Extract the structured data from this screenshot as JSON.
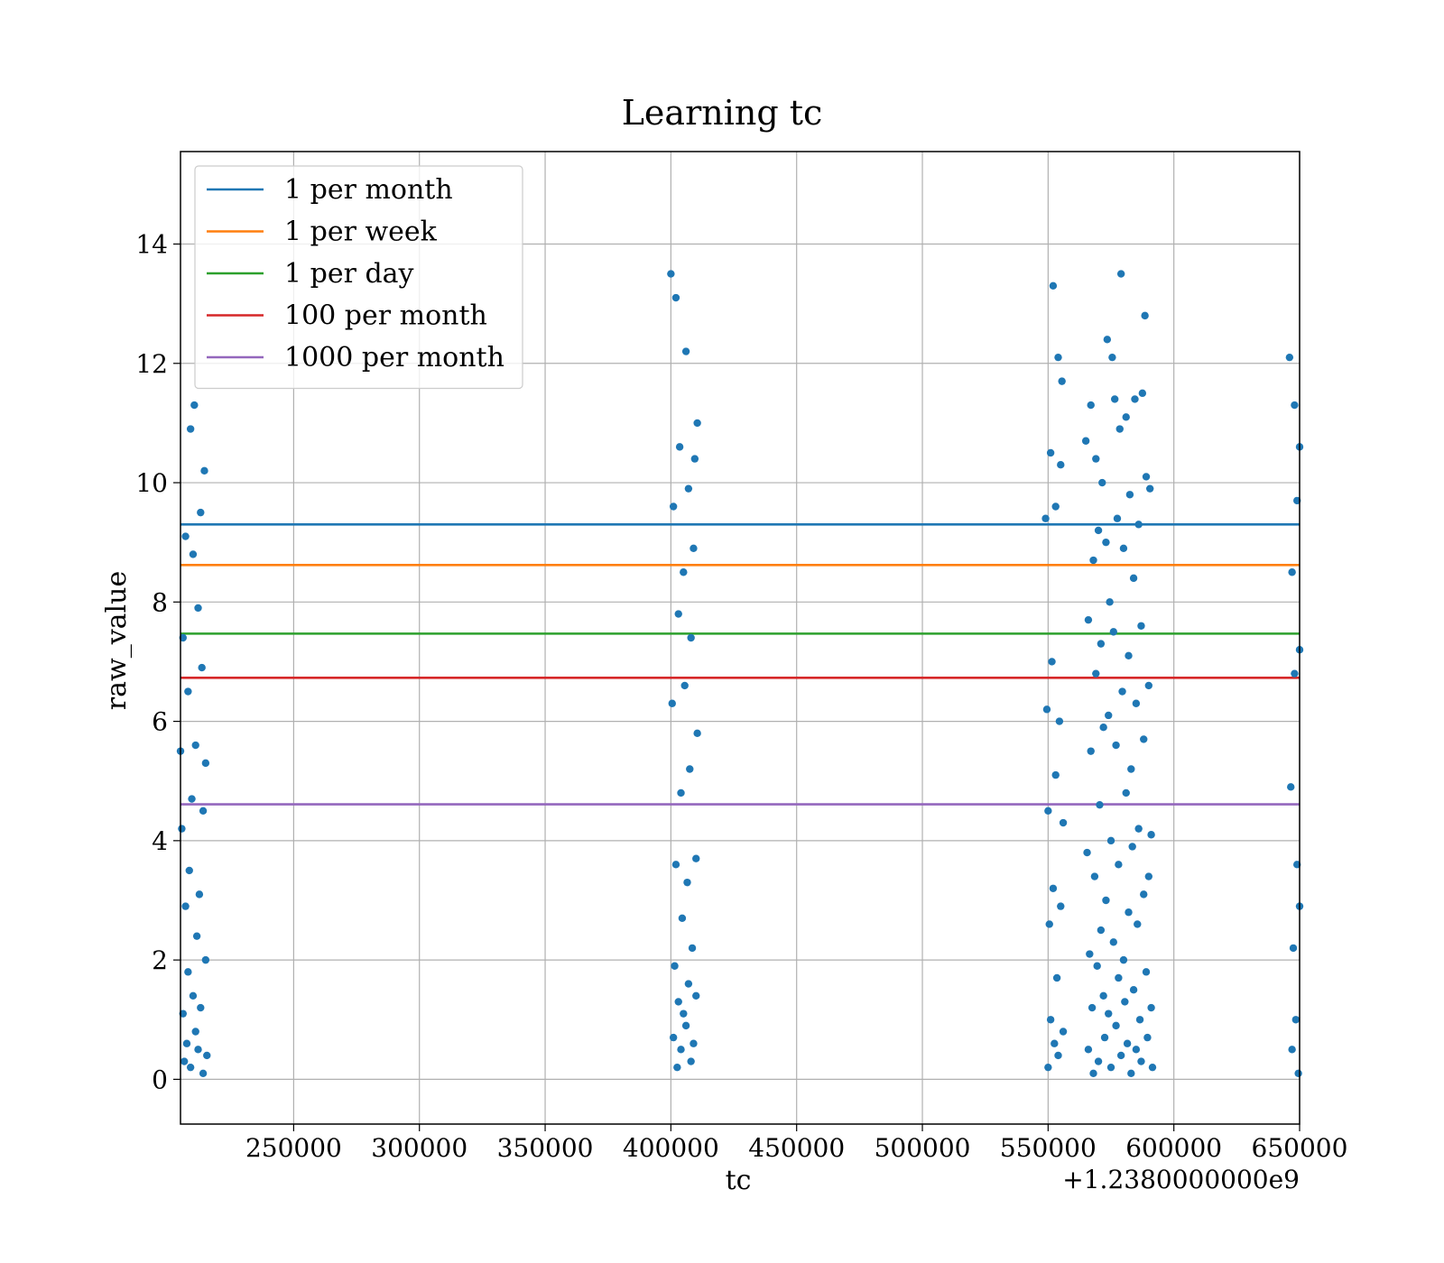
{
  "chart_data": {
    "type": "scatter",
    "title": "Learning tc",
    "xlabel": "tc",
    "ylabel": "raw_value",
    "x_offset_label": "+1.2380000000e9",
    "xlim": [
      1238205000,
      1238650000
    ],
    "ylim": [
      -0.75,
      15.55
    ],
    "x_ticks": [
      1238250000,
      1238300000,
      1238350000,
      1238400000,
      1238450000,
      1238500000,
      1238550000,
      1238600000,
      1238650000
    ],
    "x_tick_labels": [
      "250000",
      "300000",
      "350000",
      "400000",
      "450000",
      "500000",
      "550000",
      "600000",
      "650000"
    ],
    "y_ticks": [
      0,
      2,
      4,
      6,
      8,
      10,
      12,
      14
    ],
    "y_tick_labels": [
      "0",
      "2",
      "4",
      "6",
      "8",
      "10",
      "12",
      "14"
    ],
    "grid": true,
    "legend_position": "top-left",
    "colors": {
      "scatter": "#1f77b4",
      "grid": "#b0b0b0"
    },
    "series": [
      {
        "name": "raw_value",
        "type": "scatter",
        "points": [
          [
            1238205000,
            5.5
          ],
          [
            1238205500,
            4.2
          ],
          [
            1238206000,
            1.1
          ],
          [
            1238206000,
            7.4
          ],
          [
            1238206500,
            0.3
          ],
          [
            1238207000,
            9.1
          ],
          [
            1238207000,
            2.9
          ],
          [
            1238207500,
            0.6
          ],
          [
            1238208000,
            6.5
          ],
          [
            1238208000,
            1.8
          ],
          [
            1238208500,
            3.5
          ],
          [
            1238209000,
            10.9
          ],
          [
            1238209000,
            0.2
          ],
          [
            1238209500,
            4.7
          ],
          [
            1238210000,
            8.8
          ],
          [
            1238210000,
            1.4
          ],
          [
            1238210500,
            11.3
          ],
          [
            1238211000,
            5.6
          ],
          [
            1238211000,
            0.8
          ],
          [
            1238211500,
            2.4
          ],
          [
            1238212000,
            7.9
          ],
          [
            1238212000,
            0.5
          ],
          [
            1238212500,
            3.1
          ],
          [
            1238213000,
            9.5
          ],
          [
            1238213000,
            1.2
          ],
          [
            1238213500,
            6.9
          ],
          [
            1238214000,
            4.5
          ],
          [
            1238214000,
            0.1
          ],
          [
            1238214500,
            10.2
          ],
          [
            1238215000,
            2.0
          ],
          [
            1238215000,
            5.3
          ],
          [
            1238215500,
            0.4
          ],
          [
            1238400000,
            13.5
          ],
          [
            1238400500,
            6.3
          ],
          [
            1238401000,
            0.7
          ],
          [
            1238401000,
            9.6
          ],
          [
            1238401500,
            1.9
          ],
          [
            1238402000,
            13.1
          ],
          [
            1238402000,
            3.6
          ],
          [
            1238402500,
            0.2
          ],
          [
            1238403000,
            7.8
          ],
          [
            1238403000,
            1.3
          ],
          [
            1238403500,
            10.6
          ],
          [
            1238404000,
            4.8
          ],
          [
            1238404000,
            0.5
          ],
          [
            1238404500,
            2.7
          ],
          [
            1238405000,
            8.5
          ],
          [
            1238405000,
            1.1
          ],
          [
            1238405500,
            6.6
          ],
          [
            1238406000,
            12.2
          ],
          [
            1238406000,
            0.9
          ],
          [
            1238406500,
            3.3
          ],
          [
            1238407000,
            9.9
          ],
          [
            1238407000,
            1.6
          ],
          [
            1238407500,
            5.2
          ],
          [
            1238408000,
            0.3
          ],
          [
            1238408000,
            7.4
          ],
          [
            1238408500,
            2.2
          ],
          [
            1238409000,
            8.9
          ],
          [
            1238409000,
            0.6
          ],
          [
            1238409500,
            10.4
          ],
          [
            1238410000,
            3.7
          ],
          [
            1238410000,
            1.4
          ],
          [
            1238410500,
            11.0
          ],
          [
            1238410500,
            5.8
          ],
          [
            1238549000,
            9.4
          ],
          [
            1238549500,
            6.2
          ],
          [
            1238550000,
            0.2
          ],
          [
            1238550000,
            4.5
          ],
          [
            1238550500,
            2.6
          ],
          [
            1238551000,
            10.5
          ],
          [
            1238551000,
            1.0
          ],
          [
            1238551500,
            7.0
          ],
          [
            1238552000,
            13.3
          ],
          [
            1238552000,
            3.2
          ],
          [
            1238552500,
            0.6
          ],
          [
            1238553000,
            9.6
          ],
          [
            1238553000,
            5.1
          ],
          [
            1238553500,
            1.7
          ],
          [
            1238554000,
            12.1
          ],
          [
            1238554000,
            0.4
          ],
          [
            1238554500,
            6.0
          ],
          [
            1238555000,
            10.3
          ],
          [
            1238555000,
            2.9
          ],
          [
            1238555500,
            11.7
          ],
          [
            1238556000,
            0.8
          ],
          [
            1238556000,
            4.3
          ],
          [
            1238565000,
            10.7
          ],
          [
            1238565500,
            3.8
          ],
          [
            1238566000,
            0.5
          ],
          [
            1238566000,
            7.7
          ],
          [
            1238566500,
            2.1
          ],
          [
            1238567000,
            11.3
          ],
          [
            1238567000,
            5.5
          ],
          [
            1238567500,
            1.2
          ],
          [
            1238568000,
            8.7
          ],
          [
            1238568000,
            0.1
          ],
          [
            1238568500,
            3.4
          ],
          [
            1238569000,
            10.4
          ],
          [
            1238569000,
            6.8
          ],
          [
            1238569500,
            1.9
          ],
          [
            1238570000,
            9.2
          ],
          [
            1238570000,
            0.3
          ],
          [
            1238570500,
            4.6
          ],
          [
            1238571000,
            7.3
          ],
          [
            1238571000,
            2.5
          ],
          [
            1238571500,
            10.0
          ],
          [
            1238572000,
            1.4
          ],
          [
            1238572000,
            5.9
          ],
          [
            1238572500,
            0.7
          ],
          [
            1238573000,
            9.0
          ],
          [
            1238573000,
            3.0
          ],
          [
            1238573500,
            12.4
          ],
          [
            1238574000,
            6.1
          ],
          [
            1238574000,
            1.1
          ],
          [
            1238574500,
            8.0
          ],
          [
            1238575000,
            0.2
          ],
          [
            1238575000,
            4.0
          ],
          [
            1238575500,
            12.1
          ],
          [
            1238576000,
            2.3
          ],
          [
            1238576000,
            7.5
          ],
          [
            1238576500,
            11.4
          ],
          [
            1238577000,
            0.9
          ],
          [
            1238577000,
            5.6
          ],
          [
            1238577500,
            9.4
          ],
          [
            1238578000,
            1.7
          ],
          [
            1238578000,
            3.6
          ],
          [
            1238578500,
            10.9
          ],
          [
            1238579000,
            0.4
          ],
          [
            1238579000,
            13.5
          ],
          [
            1238579500,
            6.5
          ],
          [
            1238580000,
            2.0
          ],
          [
            1238580000,
            8.9
          ],
          [
            1238580500,
            1.3
          ],
          [
            1238581000,
            4.8
          ],
          [
            1238581000,
            11.1
          ],
          [
            1238581500,
            0.6
          ],
          [
            1238582000,
            7.1
          ],
          [
            1238582000,
            2.8
          ],
          [
            1238582500,
            9.8
          ],
          [
            1238583000,
            0.1
          ],
          [
            1238583000,
            5.2
          ],
          [
            1238583500,
            3.9
          ],
          [
            1238584000,
            8.4
          ],
          [
            1238584000,
            1.5
          ],
          [
            1238584500,
            11.4
          ],
          [
            1238585000,
            0.5
          ],
          [
            1238585000,
            6.3
          ],
          [
            1238585500,
            2.6
          ],
          [
            1238586000,
            9.3
          ],
          [
            1238586000,
            4.2
          ],
          [
            1238586500,
            1.0
          ],
          [
            1238587000,
            7.6
          ],
          [
            1238587000,
            0.3
          ],
          [
            1238587500,
            11.5
          ],
          [
            1238588000,
            3.1
          ],
          [
            1238588000,
            5.7
          ],
          [
            1238588500,
            12.8
          ],
          [
            1238589000,
            1.8
          ],
          [
            1238589000,
            10.1
          ],
          [
            1238589500,
            0.7
          ],
          [
            1238590000,
            6.6
          ],
          [
            1238590000,
            3.4
          ],
          [
            1238590500,
            9.9
          ],
          [
            1238591000,
            1.2
          ],
          [
            1238591000,
            4.1
          ],
          [
            1238591500,
            0.2
          ],
          [
            1238646000,
            12.1
          ],
          [
            1238646500,
            4.9
          ],
          [
            1238647000,
            0.5
          ],
          [
            1238647000,
            8.5
          ],
          [
            1238647500,
            2.2
          ],
          [
            1238648000,
            11.3
          ],
          [
            1238648000,
            6.8
          ],
          [
            1238648500,
            1.0
          ],
          [
            1238649000,
            9.7
          ],
          [
            1238649000,
            3.6
          ],
          [
            1238649500,
            0.1
          ],
          [
            1238650000,
            7.2
          ],
          [
            1238650000,
            10.6
          ],
          [
            1238650000,
            2.9
          ]
        ]
      },
      {
        "name": "1 per month",
        "type": "hline",
        "y": 9.3,
        "color": "#1f77b4"
      },
      {
        "name": "1 per week",
        "type": "hline",
        "y": 8.62,
        "color": "#ff7f0e"
      },
      {
        "name": "1 per day",
        "type": "hline",
        "y": 7.47,
        "color": "#2ca02c"
      },
      {
        "name": "100 per month",
        "type": "hline",
        "y": 6.73,
        "color": "#d62728"
      },
      {
        "name": "1000 per month",
        "type": "hline",
        "y": 4.61,
        "color": "#9467bd"
      }
    ]
  }
}
